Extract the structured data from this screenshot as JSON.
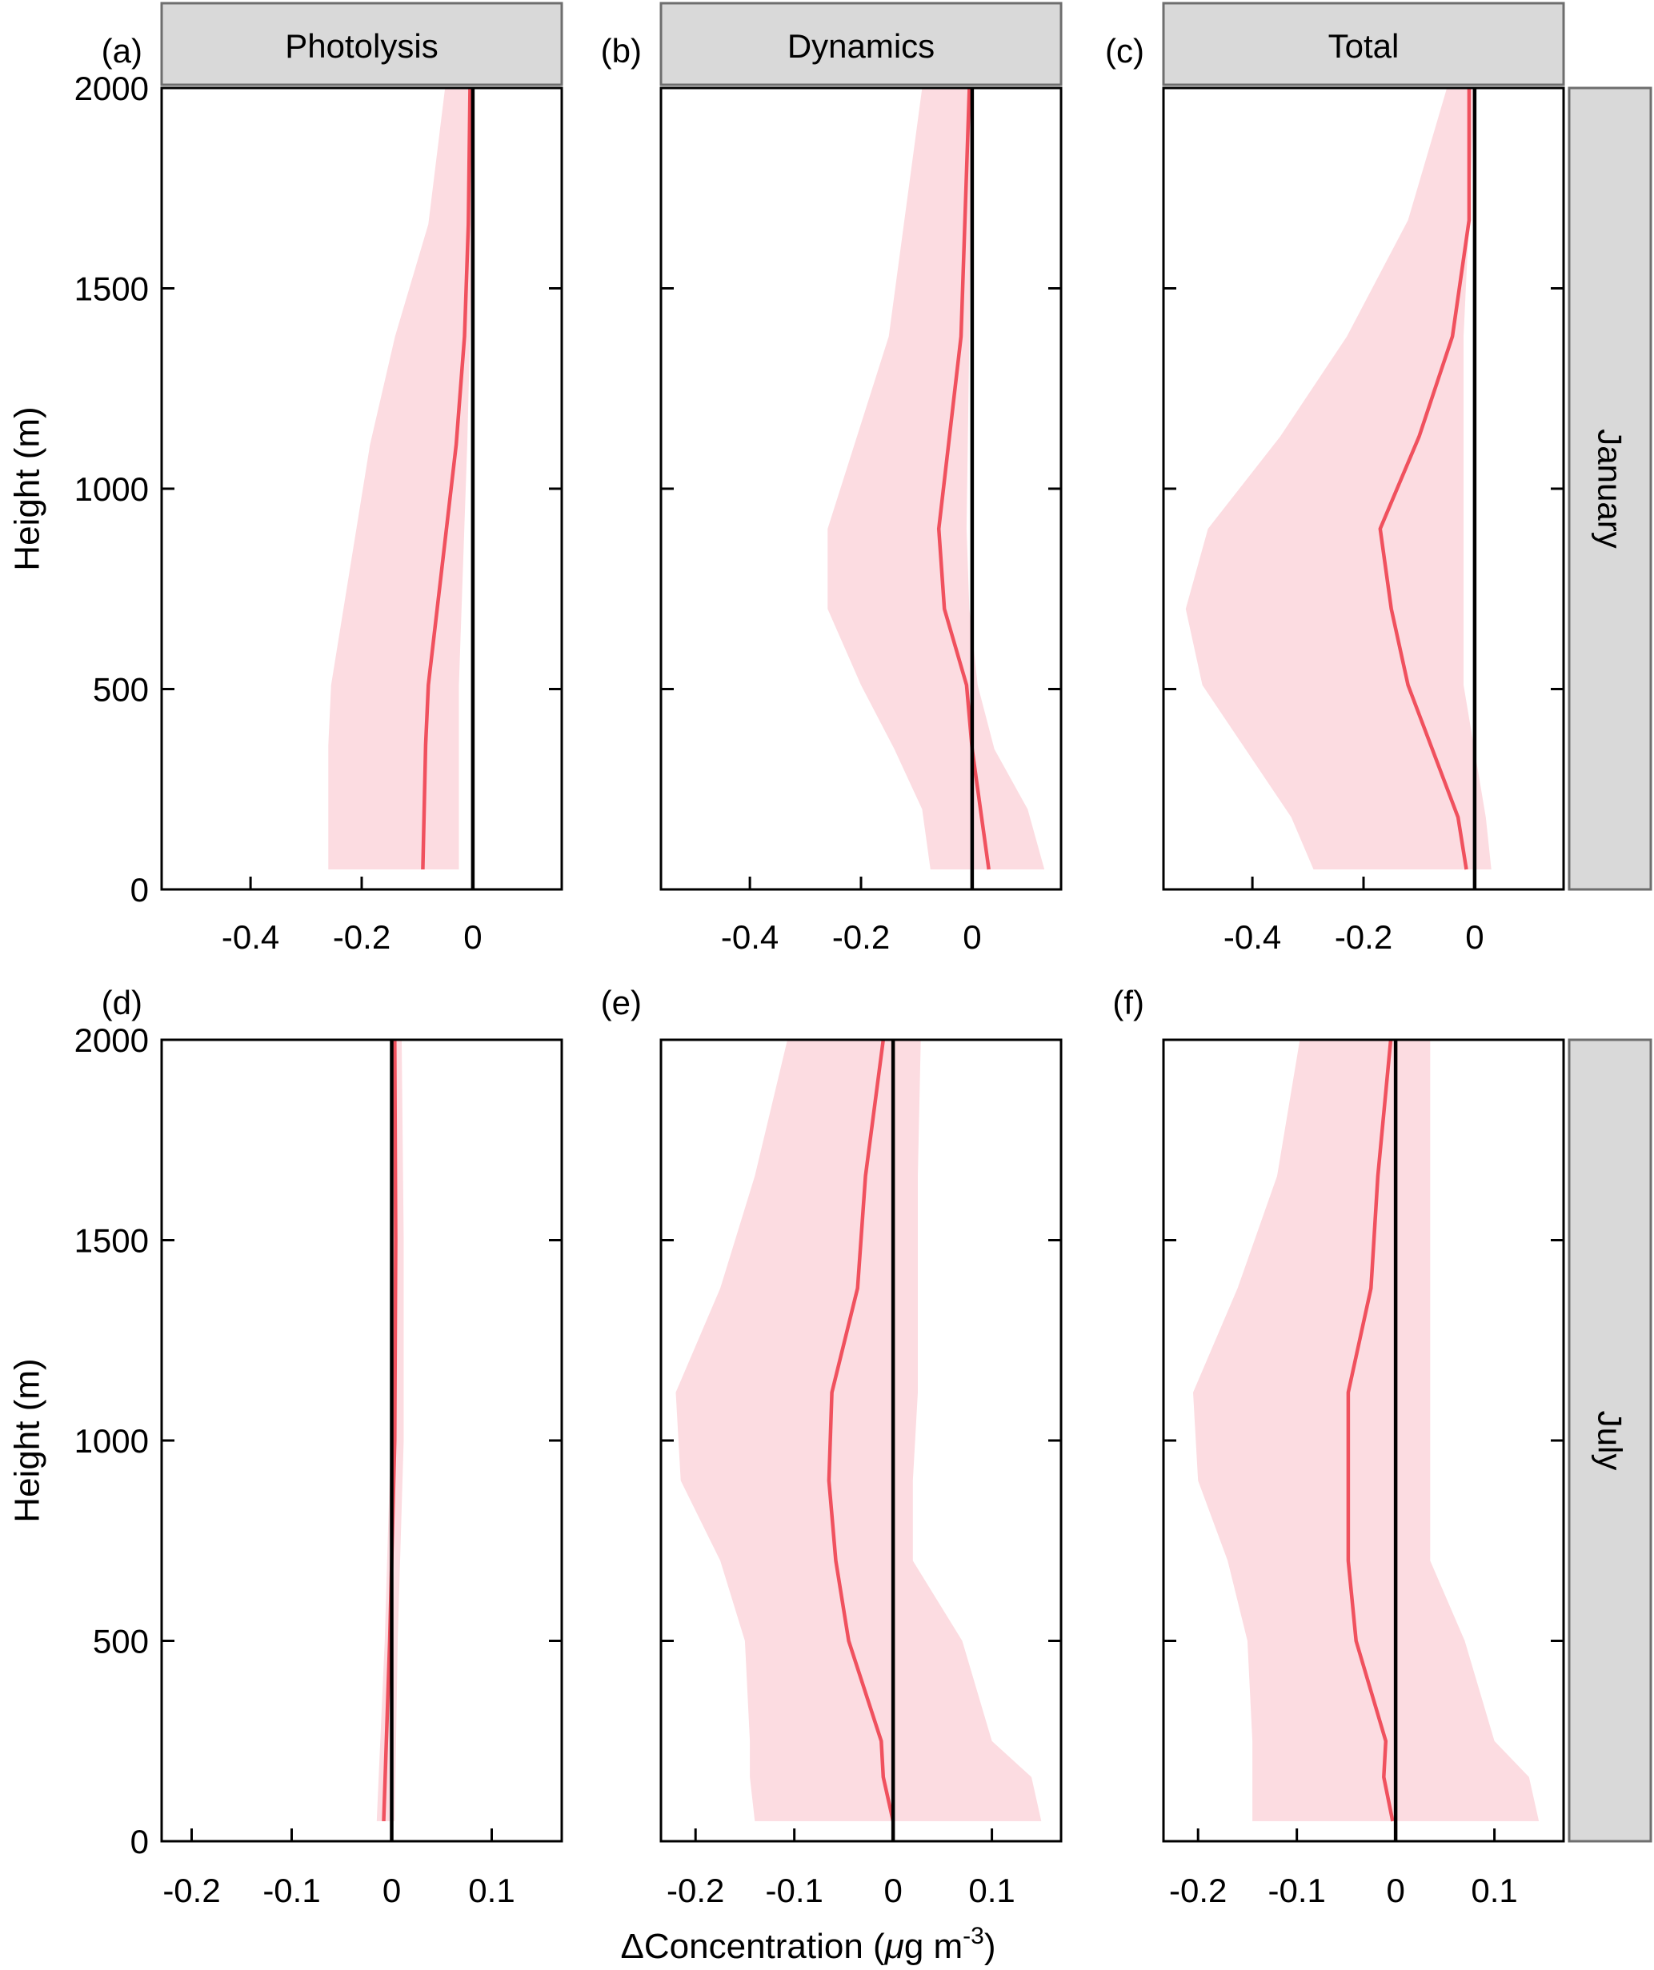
{
  "figure": {
    "x_axis_label_parts": [
      "ΔConcentration (",
      "μ",
      "g m",
      "-3",
      ")"
    ],
    "y_axis_label": "Height (m)",
    "column_headers": [
      "Photolysis",
      "Dynamics",
      "Total"
    ],
    "row_headers": [
      "January",
      "July"
    ],
    "colors": {
      "band": "#fcdce1",
      "line": "#f0515e",
      "zero": "#000000",
      "strip": "#d9d9d9",
      "strip_border": "#6e6e6e"
    }
  },
  "chart_data": [
    {
      "type": "line",
      "panel": "(a)",
      "column": "Photolysis",
      "row": "January",
      "xlim": [
        -0.56,
        0.16
      ],
      "ylim": [
        0,
        2000
      ],
      "xticks": [
        -0.4,
        -0.2,
        0
      ],
      "xtick_labels": [
        "-0.4",
        "-0.2",
        "0"
      ],
      "yticks": [
        0,
        500,
        1000,
        1500,
        2000
      ],
      "ytick_labels": [
        "0",
        "500",
        "1000",
        "1500",
        "2000"
      ],
      "y": [
        50,
        360,
        510,
        1110,
        1380,
        1660,
        2000
      ],
      "mean": [
        -0.09,
        -0.085,
        -0.08,
        -0.03,
        -0.015,
        -0.008,
        -0.005
      ],
      "lower": [
        -0.26,
        -0.26,
        -0.255,
        -0.185,
        -0.14,
        -0.08,
        -0.05
      ],
      "upper": [
        -0.025,
        -0.025,
        -0.025,
        -0.01,
        -0.005,
        0,
        0
      ]
    },
    {
      "type": "line",
      "panel": "(b)",
      "column": "Dynamics",
      "row": "January",
      "xlim": [
        -0.56,
        0.16
      ],
      "ylim": [
        0,
        2000
      ],
      "xticks": [
        -0.4,
        -0.2,
        0
      ],
      "xtick_labels": [
        "-0.4",
        "-0.2",
        "0"
      ],
      "yticks": [
        0,
        500,
        1000,
        1500,
        2000
      ],
      "ytick_labels": [
        "0",
        "500",
        "1000",
        "1500",
        "2000"
      ],
      "y": [
        50,
        200,
        350,
        510,
        700,
        900,
        1380,
        2000
      ],
      "mean": [
        0.03,
        0.015,
        0,
        -0.01,
        -0.05,
        -0.06,
        -0.02,
        -0.005
      ],
      "lower": [
        -0.075,
        -0.09,
        -0.14,
        -0.2,
        -0.26,
        -0.26,
        -0.15,
        -0.09
      ],
      "upper": [
        0.13,
        0.1,
        0.04,
        0.01,
        -0.005,
        -0.01,
        -0.005,
        0
      ]
    },
    {
      "type": "line",
      "panel": "(c)",
      "column": "Total",
      "row": "January",
      "xlim": [
        -0.56,
        0.16
      ],
      "ylim": [
        0,
        2000
      ],
      "xticks": [
        -0.4,
        -0.2,
        0
      ],
      "xtick_labels": [
        "-0.4",
        "-0.2",
        "0"
      ],
      "yticks": [
        0,
        500,
        1000,
        1500,
        2000
      ],
      "ytick_labels": [
        "0",
        "500",
        "1000",
        "1500",
        "2000"
      ],
      "y": [
        50,
        180,
        510,
        700,
        900,
        1130,
        1380,
        1670,
        2000
      ],
      "mean": [
        -0.015,
        -0.03,
        -0.12,
        -0.15,
        -0.17,
        -0.1,
        -0.04,
        -0.01,
        -0.01
      ],
      "lower": [
        -0.29,
        -0.33,
        -0.49,
        -0.52,
        -0.48,
        -0.35,
        -0.23,
        -0.12,
        -0.05
      ],
      "upper": [
        0.03,
        0.02,
        -0.02,
        -0.02,
        -0.02,
        -0.02,
        -0.02,
        -0.01,
        0
      ]
    },
    {
      "type": "line",
      "panel": "(d)",
      "column": "Photolysis",
      "row": "July",
      "xlim": [
        -0.23,
        0.17
      ],
      "ylim": [
        0,
        2000
      ],
      "xticks": [
        -0.2,
        -0.1,
        0,
        0.1
      ],
      "xtick_labels": [
        "-0.2",
        "-0.1",
        "0",
        "0.1"
      ],
      "yticks": [
        0,
        500,
        1000,
        1500,
        2000
      ],
      "ytick_labels": [
        "0",
        "500",
        "1000",
        "1500",
        "2000"
      ],
      "y": [
        50,
        500,
        1000,
        1500,
        2000
      ],
      "mean": [
        -0.008,
        -0.002,
        0.003,
        0.004,
        0.003
      ],
      "lower": [
        -0.015,
        -0.007,
        -0.001,
        0,
        -0.001
      ],
      "upper": [
        0.003,
        0.006,
        0.012,
        0.012,
        0.01
      ]
    },
    {
      "type": "line",
      "panel": "(e)",
      "column": "Dynamics",
      "row": "July",
      "xlim": [
        -0.235,
        0.17
      ],
      "ylim": [
        0,
        2000
      ],
      "xticks": [
        -0.2,
        -0.1,
        0,
        0.1
      ],
      "xtick_labels": [
        "-0.2",
        "-0.1",
        "0",
        "0.1"
      ],
      "yticks": [
        0,
        500,
        1000,
        1500,
        2000
      ],
      "ytick_labels": [
        "0",
        "500",
        "1000",
        "1500",
        "2000"
      ],
      "y": [
        50,
        160,
        250,
        500,
        700,
        900,
        1120,
        1380,
        1660,
        2000
      ],
      "mean": [
        0,
        -0.01,
        -0.012,
        -0.045,
        -0.058,
        -0.065,
        -0.062,
        -0.036,
        -0.028,
        -0.01
      ],
      "lower": [
        -0.14,
        -0.145,
        -0.145,
        -0.15,
        -0.175,
        -0.215,
        -0.22,
        -0.175,
        -0.14,
        -0.107
      ],
      "upper": [
        0.15,
        0.14,
        0.1,
        0.07,
        0.02,
        0.02,
        0.025,
        0.025,
        0.025,
        0.028
      ]
    },
    {
      "type": "line",
      "panel": "(f)",
      "column": "Total",
      "row": "July",
      "xlim": [
        -0.235,
        0.17
      ],
      "ylim": [
        0,
        2000
      ],
      "xticks": [
        -0.2,
        -0.1,
        0,
        0.1
      ],
      "xtick_labels": [
        "-0.2",
        "-0.1",
        "0",
        "0.1"
      ],
      "yticks": [
        0,
        500,
        1000,
        1500,
        2000
      ],
      "ytick_labels": [
        "0",
        "500",
        "1000",
        "1500",
        "2000"
      ],
      "y": [
        50,
        160,
        250,
        500,
        700,
        900,
        1120,
        1380,
        1660,
        2000
      ],
      "mean": [
        -0.003,
        -0.012,
        -0.01,
        -0.04,
        -0.048,
        -0.048,
        -0.048,
        -0.025,
        -0.018,
        -0.005
      ],
      "lower": [
        -0.145,
        -0.145,
        -0.145,
        -0.15,
        -0.17,
        -0.2,
        -0.205,
        -0.16,
        -0.12,
        -0.097
      ],
      "upper": [
        0.145,
        0.135,
        0.1,
        0.07,
        0.035,
        0.035,
        0.035,
        0.035,
        0.035,
        0.035
      ]
    }
  ]
}
